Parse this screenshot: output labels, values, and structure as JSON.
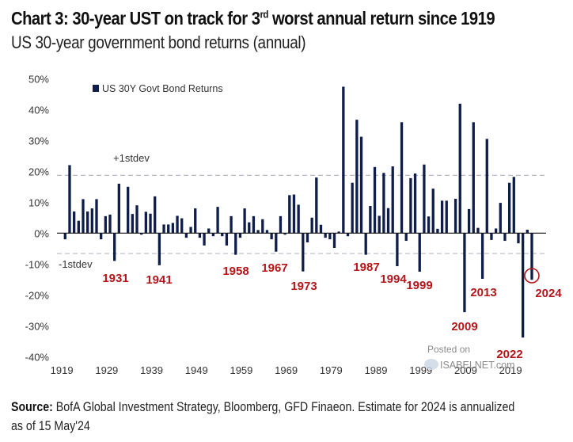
{
  "header": {
    "title_prefix": "Chart 3: 30-year UST on track for 3",
    "title_sup": "rd",
    "title_suffix": " worst annual return since 1919",
    "subtitle": "US 30-year government bond returns (annual)"
  },
  "footer": {
    "source_label": "Source:",
    "source_text": " BofA Global Investment Strategy, Bloomberg, GFD Finaeon. Estimate for 2024 is annualized as of 15 May'24"
  },
  "watermark": {
    "line1": "Posted on",
    "line2": "ISABELNET.com"
  },
  "colors": {
    "bar": "#0f1d4a",
    "highlight": "#b5161b",
    "stdev_line": "#b8b8c8",
    "axis_text": "#333333"
  },
  "chart_data": {
    "type": "bar",
    "title": "Chart 3: 30-year UST on track for 3rd worst annual return since 1919",
    "subtitle": "US 30-year government bond returns (annual)",
    "xlabel": "",
    "ylabel": "",
    "ylim": [
      -40,
      50
    ],
    "y_ticks": [
      50,
      40,
      30,
      20,
      10,
      0,
      -10,
      -20,
      -30,
      -40
    ],
    "y_tick_labels": [
      "50%",
      "40%",
      "30%",
      "20%",
      "10%",
      "0%",
      "-10%",
      "-20%",
      "-30%",
      "-40%"
    ],
    "x_tick_labels": [
      "1919",
      "1929",
      "1939",
      "1949",
      "1959",
      "1969",
      "1979",
      "1989",
      "1999",
      "2009",
      "2019"
    ],
    "x_tick_years": [
      1919,
      1929,
      1939,
      1949,
      1959,
      1969,
      1979,
      1989,
      1999,
      2009,
      2019
    ],
    "legend": {
      "label": "US 30Y Govt Bond Returns",
      "position": "top-left"
    },
    "grid": false,
    "series": [
      {
        "name": "US 30Y Govt Bond Returns",
        "start_year": 1920,
        "values": [
          -2,
          22,
          7,
          4,
          11,
          7,
          8,
          11,
          -2,
          5.5,
          6,
          -9,
          16,
          0,
          15,
          6.2,
          9,
          -0.5,
          6.9,
          6.3,
          11.9,
          -10.4,
          2.8,
          2.8,
          3.3,
          5.6,
          4.8,
          -1.5,
          2,
          8,
          -1.5,
          -4,
          1.5,
          -1,
          8.5,
          -1,
          -4,
          5.5,
          -7,
          -1.5,
          8,
          3.5,
          5.5,
          1,
          4.5,
          1,
          -2,
          -6,
          5.5,
          -0.5,
          12.3,
          12.5,
          9.2,
          -12.4,
          -3,
          5,
          18,
          2.7,
          -1.5,
          -2,
          -4.8,
          0.5,
          47.4,
          -1,
          16.3,
          36.7,
          31.2,
          -7,
          8.8,
          21.4,
          5.6,
          19.5,
          8.1,
          21.6,
          -10.7,
          35.9,
          -2.5,
          17.8,
          19.3,
          -12.5,
          22.2,
          5.4,
          14.4,
          1.4,
          10.5,
          10.5,
          0,
          11.1,
          41.9,
          -25.6,
          7.8,
          35.9,
          1.7,
          -14.8,
          30.5,
          -2.2,
          1.5,
          9.8,
          -2.5,
          16.3,
          18.2,
          -3.3,
          -33.8,
          1.1,
          -15.1
        ]
      }
    ],
    "reference_lines": [
      {
        "label": "+1stdev",
        "value": 18.7
      },
      {
        "label": "-1stdev",
        "value": -6.6
      }
    ],
    "annotations": [
      {
        "label": "1931",
        "year": 1931
      },
      {
        "label": "1941",
        "year": 1941
      },
      {
        "label": "1958",
        "year": 1958
      },
      {
        "label": "1967",
        "year": 1967
      },
      {
        "label": "1973",
        "year": 1973
      },
      {
        "label": "1987",
        "year": 1987
      },
      {
        "label": "1994",
        "year": 1994
      },
      {
        "label": "1999",
        "year": 1999
      },
      {
        "label": "2009",
        "year": 2009
      },
      {
        "label": "2013",
        "year": 2013
      },
      {
        "label": "2022",
        "year": 2022
      },
      {
        "label": "2024",
        "year": 2024,
        "circled": true
      }
    ]
  }
}
